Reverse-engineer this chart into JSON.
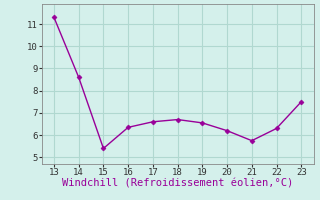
{
  "x": [
    13,
    14,
    15,
    16,
    17,
    18,
    19,
    20,
    21,
    22,
    23
  ],
  "y": [
    11.3,
    8.6,
    5.4,
    6.35,
    6.6,
    6.7,
    6.55,
    6.2,
    5.75,
    6.3,
    7.5
  ],
  "line_color": "#990099",
  "marker": "D",
  "marker_size": 2.5,
  "bg_color": "#d4f0eb",
  "grid_color": "#b0d8d0",
  "xlabel": "Windchill (Refroidissement éolien,°C)",
  "xlabel_color": "#990099",
  "xlim": [
    12.5,
    23.5
  ],
  "ylim": [
    4.7,
    11.9
  ],
  "xticks": [
    13,
    14,
    15,
    16,
    17,
    18,
    19,
    20,
    21,
    22,
    23
  ],
  "yticks": [
    5,
    6,
    7,
    8,
    9,
    10,
    11
  ],
  "tick_fontsize": 6.5,
  "xlabel_fontsize": 7.5
}
